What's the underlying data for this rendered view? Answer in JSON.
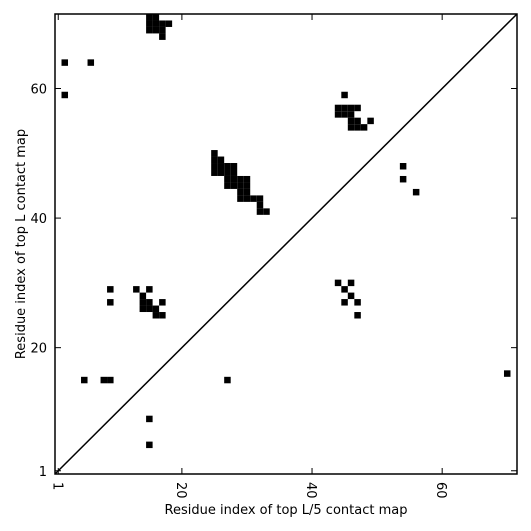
{
  "chart_data": {
    "type": "scatter",
    "xlabel": "Residue index of top L/5 contact map",
    "ylabel": "Residue index of top L contact map",
    "xlim": [
      0.5,
      71.5
    ],
    "ylim": [
      0.5,
      71.5
    ],
    "xticks": [
      1,
      20,
      40,
      60
    ],
    "yticks": [
      1,
      20,
      40,
      60
    ],
    "marker": "square",
    "series": [
      {
        "color": "#000000",
        "x": [
          2,
          6,
          2,
          15,
          16,
          15,
          16,
          17,
          18,
          15,
          16,
          17,
          17,
          45,
          44,
          45,
          46,
          47,
          44,
          45,
          46,
          46,
          47,
          46,
          47,
          48,
          49,
          25,
          25,
          26,
          25,
          26,
          27,
          28,
          25,
          26,
          27,
          28,
          27,
          28,
          29,
          30,
          27,
          28,
          29,
          30,
          29,
          30,
          29,
          30,
          31,
          32,
          32,
          32,
          33,
          54,
          54,
          56
        ],
        "y": [
          64,
          64,
          59,
          71,
          71,
          70,
          70,
          70,
          70,
          69,
          69,
          69,
          68,
          59,
          57,
          57,
          57,
          57,
          56,
          56,
          56,
          55,
          55,
          54,
          54,
          54,
          55,
          50,
          49,
          49,
          48,
          48,
          48,
          48,
          47,
          47,
          47,
          47,
          46,
          46,
          46,
          46,
          45,
          45,
          45,
          45,
          44,
          44,
          43,
          43,
          43,
          43,
          42,
          41,
          41,
          48,
          46,
          44
        ]
      },
      {
        "color": "#000000",
        "x": [
          9,
          9,
          13,
          15,
          14,
          14,
          15,
          14,
          15,
          16,
          16,
          17,
          17,
          44,
          46,
          45,
          46,
          45,
          47,
          47,
          5,
          8,
          9,
          27,
          70,
          15,
          15
        ],
        "y": [
          29,
          27,
          29,
          29,
          28,
          27,
          27,
          26,
          26,
          26,
          25,
          25,
          27,
          30,
          30,
          29,
          28,
          27,
          27,
          25,
          15,
          15,
          15,
          15,
          16,
          9,
          5
        ]
      }
    ]
  }
}
